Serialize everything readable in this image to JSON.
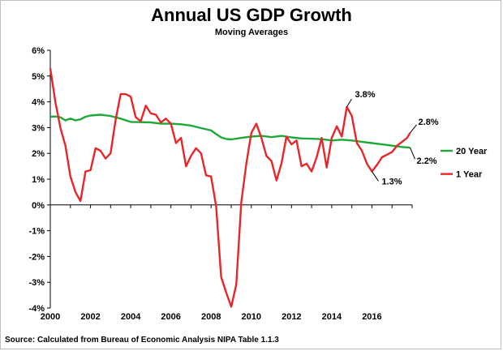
{
  "title": "Annual US GDP Growth",
  "subtitle": "Moving Averages",
  "source": "Source: Calculated  from Bureau of Economic Analysis NIPA Table  1.1.3",
  "chart_data": {
    "type": "line",
    "title": "Annual US GDP Growth",
    "subtitle": "Moving Averages",
    "xlim": [
      2000,
      2018
    ],
    "ylim": [
      -4,
      6
    ],
    "y_ticks": [
      6,
      5,
      4,
      3,
      2,
      1,
      0,
      -1,
      -2,
      -3,
      -4
    ],
    "y_tick_labels": [
      "6%",
      "5%",
      "4%",
      "3%",
      "2%",
      "1%",
      "0%",
      "-1%",
      "-2%",
      "-3%",
      "-4%"
    ],
    "x_ticks": [
      2000,
      2002,
      2004,
      2006,
      2008,
      2010,
      2012,
      2014,
      2016
    ],
    "x_tick_labels": [
      "2000",
      "2002",
      "2004",
      "2006",
      "2008",
      "2010",
      "2012",
      "2014",
      "2016"
    ],
    "grid": false,
    "legend_position": "right",
    "series": [
      {
        "name": "20 Year",
        "color": "#1fa83a",
        "x": [
          2000.0,
          2000.25,
          2000.5,
          2000.75,
          2001.0,
          2001.25,
          2001.5,
          2001.75,
          2002.0,
          2002.5,
          2003.0,
          2003.5,
          2004.0,
          2004.5,
          2005.0,
          2005.5,
          2006.0,
          2006.5,
          2007.0,
          2007.5,
          2008.0,
          2008.25,
          2008.5,
          2008.75,
          2009.0,
          2009.5,
          2010.0,
          2010.5,
          2011.0,
          2011.5,
          2012.0,
          2012.5,
          2013.0,
          2013.5,
          2014.0,
          2014.5,
          2015.0,
          2015.5,
          2016.0,
          2016.5,
          2017.0,
          2017.5,
          2017.9
        ],
        "values": [
          3.42,
          3.43,
          3.4,
          3.28,
          3.35,
          3.28,
          3.32,
          3.42,
          3.47,
          3.5,
          3.45,
          3.35,
          3.22,
          3.21,
          3.2,
          3.15,
          3.15,
          3.13,
          3.08,
          2.98,
          2.89,
          2.75,
          2.62,
          2.56,
          2.54,
          2.6,
          2.65,
          2.68,
          2.63,
          2.68,
          2.62,
          2.58,
          2.57,
          2.55,
          2.5,
          2.53,
          2.5,
          2.45,
          2.4,
          2.35,
          2.3,
          2.25,
          2.22
        ]
      },
      {
        "name": "1 Year",
        "color": "#e8262a",
        "x": [
          2000.0,
          2000.25,
          2000.5,
          2000.75,
          2001.0,
          2001.25,
          2001.5,
          2001.75,
          2002.0,
          2002.25,
          2002.5,
          2002.75,
          2003.0,
          2003.25,
          2003.5,
          2003.75,
          2004.0,
          2004.25,
          2004.5,
          2004.75,
          2005.0,
          2005.25,
          2005.5,
          2005.75,
          2006.0,
          2006.25,
          2006.5,
          2006.75,
          2007.0,
          2007.25,
          2007.5,
          2007.75,
          2008.0,
          2008.25,
          2008.5,
          2008.75,
          2009.0,
          2009.25,
          2009.5,
          2009.75,
          2010.0,
          2010.25,
          2010.5,
          2010.75,
          2011.0,
          2011.25,
          2011.5,
          2011.75,
          2012.0,
          2012.25,
          2012.5,
          2012.75,
          2013.0,
          2013.25,
          2013.5,
          2013.75,
          2014.0,
          2014.25,
          2014.5,
          2014.75,
          2015.0,
          2015.25,
          2015.5,
          2015.75,
          2016.0,
          2016.25,
          2016.5,
          2016.75,
          2017.0,
          2017.25,
          2017.5,
          2017.75,
          2017.9
        ],
        "values": [
          5.3,
          4.0,
          3.0,
          2.3,
          1.1,
          0.5,
          0.15,
          1.3,
          1.35,
          2.2,
          2.1,
          1.8,
          2.0,
          3.3,
          4.3,
          4.3,
          4.2,
          3.4,
          3.25,
          3.85,
          3.55,
          3.5,
          3.2,
          3.35,
          3.15,
          2.4,
          2.6,
          1.5,
          1.9,
          2.2,
          2.0,
          1.15,
          1.1,
          -0.05,
          -2.8,
          -3.4,
          -3.95,
          -3.1,
          0.1,
          1.6,
          2.8,
          3.15,
          2.6,
          1.9,
          1.7,
          0.95,
          1.6,
          2.65,
          2.35,
          2.5,
          1.5,
          1.6,
          1.3,
          1.85,
          2.6,
          1.45,
          2.6,
          3.05,
          2.65,
          3.8,
          3.45,
          2.4,
          2.1,
          1.6,
          1.3,
          1.55,
          1.85,
          1.95,
          2.05,
          2.3,
          2.45,
          2.6,
          2.8
        ]
      }
    ],
    "annotations": [
      {
        "text": "3.8%",
        "x": 2014.75,
        "y": 3.8
      },
      {
        "text": "1.3%",
        "x": 2016.0,
        "y": 1.3
      },
      {
        "text": "2.8%",
        "x": 2017.9,
        "y": 2.8
      },
      {
        "text": "2.2%",
        "x": 2017.9,
        "y": 2.22
      }
    ]
  }
}
